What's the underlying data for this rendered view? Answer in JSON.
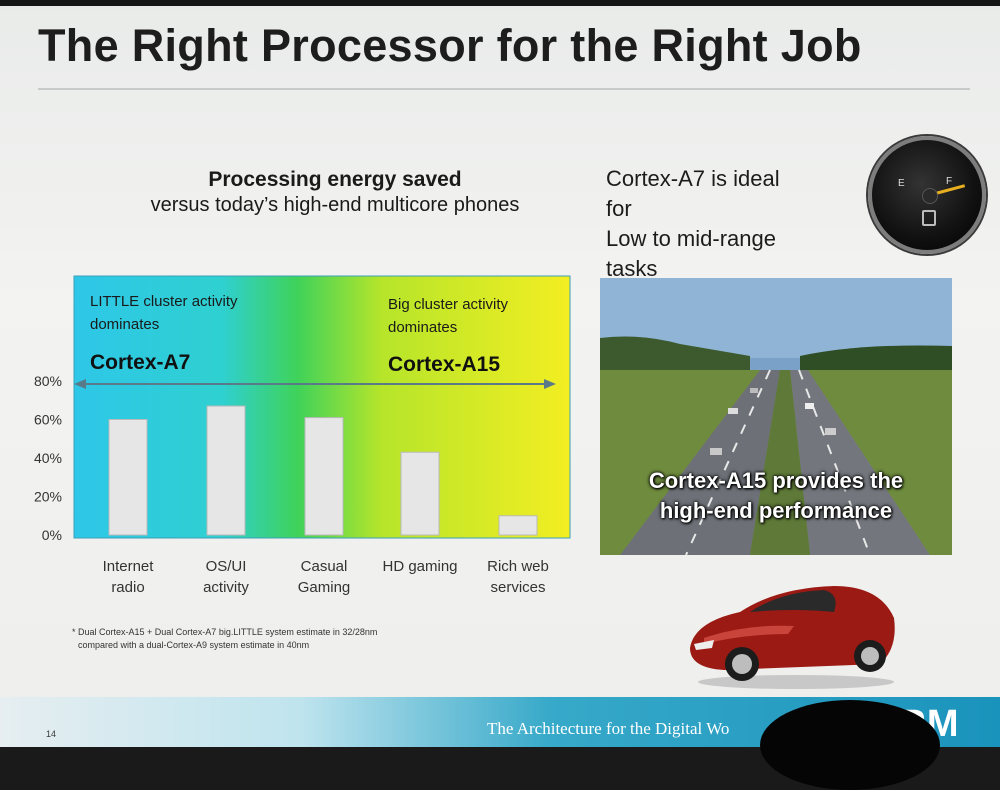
{
  "slide": {
    "title": "The Right Processor for the Right Job",
    "page_number": "14",
    "footer_tagline": "The Architecture for the Digital Wo",
    "brand": "ARM",
    "footnote_line1": "* Dual Cortex-A15 + Dual Cortex-A7 big.LITTLE system estimate in 32/28nm",
    "footnote_line2": "compared with a dual-Cortex-A9 system estimate in 40nm"
  },
  "chart_heading": {
    "line1": "Processing energy saved",
    "line2": "versus today’s high-end multicore phones"
  },
  "right_panel": {
    "a7_text": "Cortex-A7 is ideal\nfor\nLow to mid-range\ntasks",
    "a15_caption_line1": "Cortex-A15 provides the",
    "a15_caption_line2": "high-end performance",
    "gauge_e": "E",
    "gauge_f": "F"
  },
  "colors": {
    "bar_fill": "#e6e6e6",
    "little_zone": "#2ec7e8",
    "big_zone": "#f3ee22",
    "footer": "#1a93bc"
  },
  "chart_data": {
    "type": "bar",
    "categories": [
      [
        "Internet",
        "radio"
      ],
      [
        "OS/UI",
        "activity"
      ],
      [
        "Casual",
        "Gaming"
      ],
      [
        "HD gaming"
      ],
      [
        "Rich web",
        "services"
      ]
    ],
    "values": [
      60,
      67,
      61,
      43,
      10
    ],
    "unit": "%",
    "ylim": [
      0,
      80
    ],
    "yticks": [
      "0%",
      "20%",
      "40%",
      "60%",
      "80%"
    ],
    "zones": [
      {
        "label_line1": "LITTLE cluster activity",
        "label_line2": "dominates",
        "core": "Cortex-A7"
      },
      {
        "label_line1": "Big cluster activity",
        "label_line2": "dominates",
        "core": "Cortex-A15"
      }
    ],
    "grid": false,
    "legend": "none"
  }
}
